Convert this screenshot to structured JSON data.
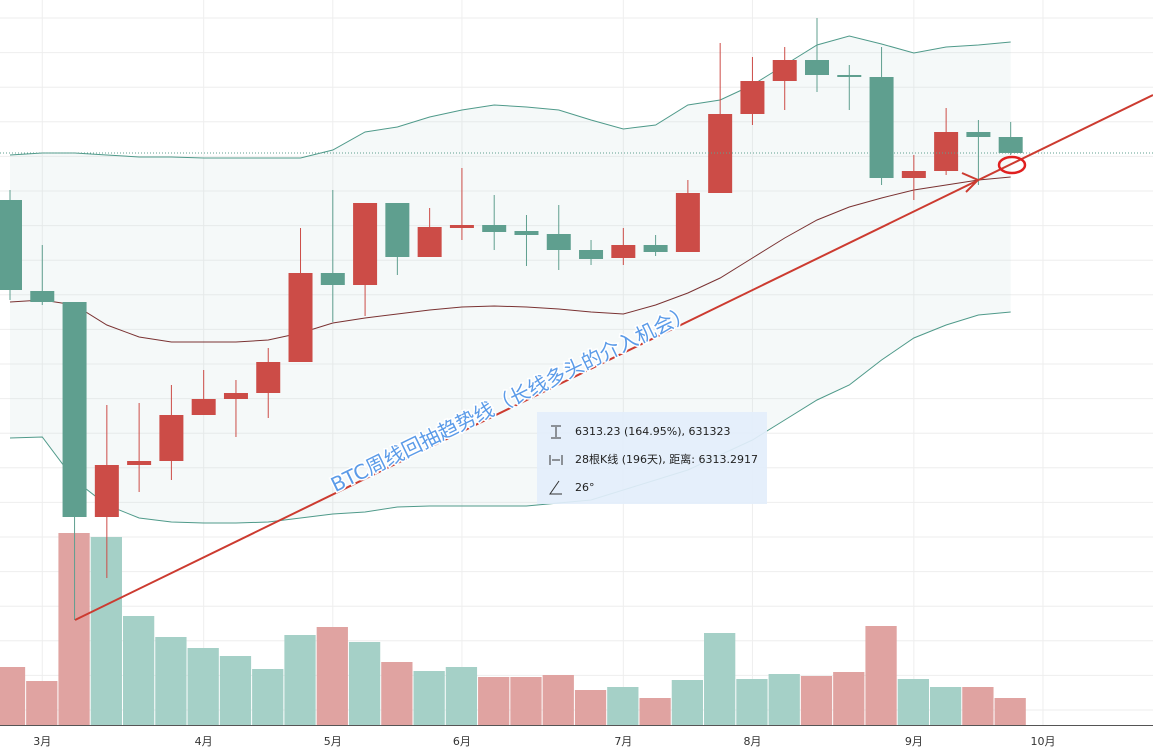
{
  "chart_data": {
    "type": "candlestick",
    "categories": [
      null,
      "3月",
      null,
      null,
      null,
      null,
      "4月",
      null,
      null,
      null,
      "5月",
      null,
      null,
      null,
      "6月",
      null,
      null,
      null,
      null,
      "7月",
      null,
      null,
      null,
      "8月",
      null,
      null,
      null,
      null,
      "9月",
      null,
      null,
      null,
      "10月"
    ],
    "open": [
      525,
      434,
      423,
      208,
      260,
      264,
      310,
      326,
      332,
      363,
      452,
      440,
      522,
      468,
      497,
      500,
      494,
      491,
      475,
      467,
      480,
      473,
      532,
      611,
      644,
      665,
      650,
      648,
      547,
      554,
      593,
      588,
      null
    ],
    "high": [
      535,
      480,
      423,
      320,
      322,
      340,
      355,
      345,
      377,
      497,
      535,
      522,
      522,
      517,
      557,
      530,
      510,
      520,
      485,
      497,
      490,
      545,
      682,
      668,
      678,
      707,
      660,
      678,
      570,
      617,
      605,
      603,
      null
    ],
    "low": [
      425,
      420,
      105,
      147,
      233,
      245,
      310,
      288,
      307,
      363,
      403,
      409,
      450,
      468,
      485,
      475,
      459,
      455,
      460,
      460,
      469,
      473,
      532,
      600,
      615,
      633,
      615,
      540,
      525,
      550,
      540,
      570,
      null
    ],
    "close": [
      435,
      423,
      208,
      260,
      264,
      310,
      326,
      332,
      363,
      452,
      440,
      522,
      468,
      498,
      500,
      493,
      490,
      475,
      466,
      480,
      473,
      532,
      611,
      644,
      665,
      650,
      648,
      547,
      554,
      593,
      588,
      572,
      null
    ],
    "up_color": "#cc4c47",
    "down_color": "#5f9f8f",
    "volume": [
      58,
      44,
      192,
      188,
      109,
      88,
      77,
      69,
      56,
      90,
      98,
      83,
      63,
      54,
      58,
      48,
      48,
      50,
      35,
      38,
      27,
      45,
      92,
      46,
      51,
      49,
      53,
      99,
      46,
      38,
      38,
      27,
      null
    ],
    "volume_colors": [
      "#e0a3a1",
      "#e0a3a1",
      "#e0a3a1",
      "#a5d0c7",
      "#a5d0c7",
      "#a5d0c7",
      "#a5d0c7",
      "#a5d0c7",
      "#a5d0c7",
      "#a5d0c7",
      "#e0a3a1",
      "#a5d0c7",
      "#e0a3a1",
      "#a5d0c7",
      "#a5d0c7",
      "#e0a3a1",
      "#e0a3a1",
      "#e0a3a1",
      "#e0a3a1",
      "#a5d0c7",
      "#e0a3a1",
      "#a5d0c7",
      "#a5d0c7",
      "#a5d0c7",
      "#a5d0c7",
      "#e0a3a1",
      "#e0a3a1",
      "#e0a3a1",
      "#a5d0c7",
      "#a5d0c7",
      "#e0a3a1",
      "#e0a3a1",
      null
    ],
    "series": [
      {
        "color": "#4f9a8a",
        "values": [
          570,
          572,
          572,
          570,
          568,
          568,
          567,
          567,
          567,
          567,
          575,
          593,
          598,
          608,
          615,
          620,
          618,
          615,
          605,
          596,
          600,
          620,
          625,
          640,
          660,
          680,
          689,
          681,
          672,
          678,
          680,
          683,
          null
        ]
      },
      {
        "color": "#7a3232",
        "values": [
          423,
          425,
          420,
          400,
          388,
          383,
          383,
          383,
          385,
          392,
          402,
          407,
          411,
          415,
          418,
          419,
          418,
          416,
          413,
          411,
          420,
          432,
          447,
          467,
          487,
          505,
          518,
          527,
          535,
          540,
          545,
          548,
          null
        ]
      },
      {
        "color": "#4f9a8a",
        "values": [
          287,
          288,
          245,
          220,
          207,
          203,
          202,
          202,
          203,
          207,
          211,
          213,
          218,
          219,
          219,
          219,
          219,
          222,
          225,
          235,
          245,
          255,
          270,
          285,
          305,
          325,
          340,
          365,
          387,
          400,
          410,
          413,
          null
        ]
      }
    ],
    "ylim": [
      0,
      725
    ],
    "vlim": [
      0,
      725
    ],
    "annotation": "BTC周线回抽趋势线（长线多头的介入机会）",
    "tooltip": [
      "6313.23 (164.95%), 631323",
      "28根K线 (196天), 距离: 6313.2917",
      "26°"
    ]
  }
}
